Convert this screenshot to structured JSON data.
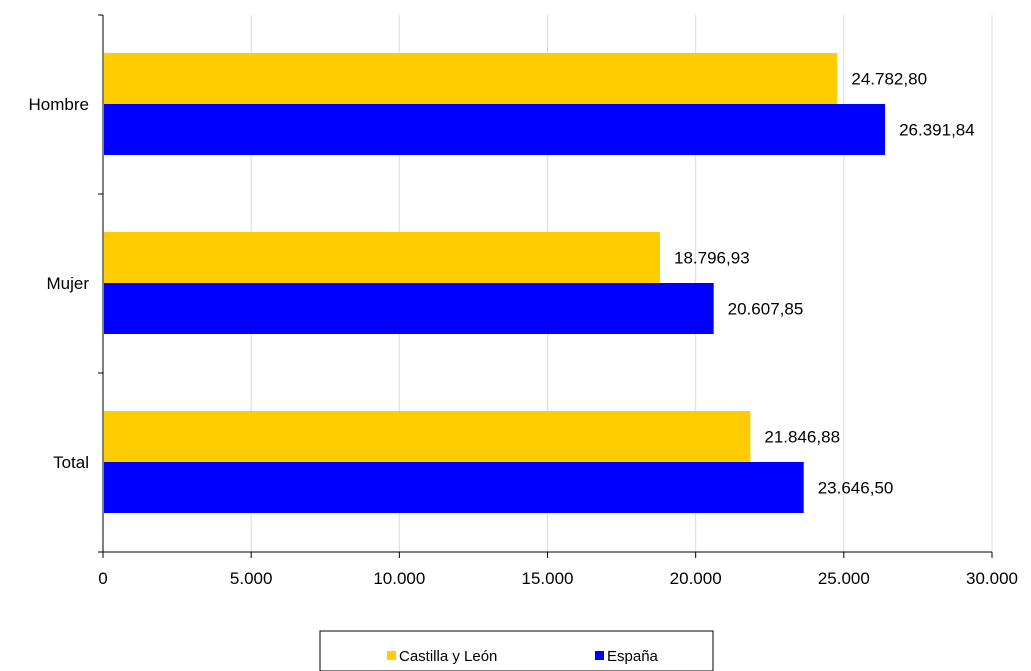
{
  "chart_data": {
    "type": "bar",
    "orientation": "horizontal",
    "categories": [
      "Hombre",
      "Mujer",
      "Total"
    ],
    "series": [
      {
        "name": "Castilla y León",
        "color": "#FFCC00",
        "values": [
          24782.8,
          18796.93,
          21846.88
        ],
        "labels": [
          "24.782,80",
          "18.796,93",
          "21.846,88"
        ]
      },
      {
        "name": "España",
        "color": "#0000FF",
        "values": [
          26391.84,
          20607.85,
          23646.5
        ],
        "labels": [
          "26.391,84",
          "20.607,85",
          "23.646,50"
        ]
      }
    ],
    "xlim": [
      0,
      30000
    ],
    "xticks": [
      0,
      5000,
      10000,
      15000,
      20000,
      25000,
      30000
    ],
    "xtick_labels": [
      "0",
      "5.000",
      "10.000",
      "15.000",
      "20.000",
      "25.000",
      "30.000"
    ],
    "grid": true,
    "legend_position": "bottom"
  }
}
